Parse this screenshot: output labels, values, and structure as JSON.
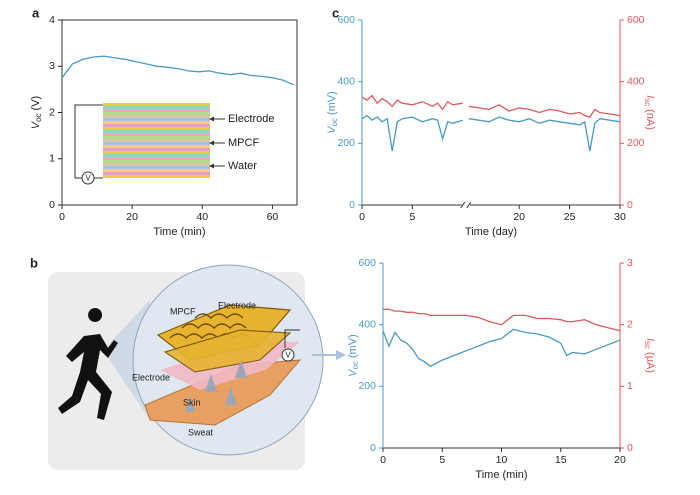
{
  "chart_data": [
    {
      "type": "line",
      "panel": "a",
      "ylabel": {
        "symbol": "V",
        "sub": "oc",
        "unit": "(V)"
      },
      "xlabel": "Time (min)",
      "x": [
        0,
        3,
        6,
        9,
        12,
        15,
        18,
        21,
        24,
        27,
        30,
        33,
        36,
        39,
        42,
        45,
        48,
        51,
        54,
        57,
        60,
        63,
        66
      ],
      "series": [
        {
          "color": "#4a9ac7",
          "values": [
            2.75,
            3.05,
            3.15,
            3.2,
            3.22,
            3.18,
            3.15,
            3.1,
            3.05,
            3.0,
            2.98,
            2.95,
            2.9,
            2.88,
            2.9,
            2.85,
            2.82,
            2.85,
            2.8,
            2.78,
            2.75,
            2.7,
            2.6
          ]
        }
      ],
      "xlim": [
        0,
        67
      ],
      "xticks": [
        0,
        20,
        40,
        60
      ],
      "ylim": [
        0,
        4
      ],
      "yticks": [
        0,
        1,
        2,
        3,
        4
      ],
      "frame": true
    },
    {
      "type": "line",
      "panel": "c",
      "ylabel": {
        "symbol": "V",
        "sub": "oc",
        "unit": "(mV)"
      },
      "y2label": {
        "symbol": "I",
        "sub": "sc",
        "unit": "(nA)"
      },
      "xlabel": "Time (day)",
      "x": [
        0,
        0.5,
        1,
        1.5,
        2,
        2.5,
        3,
        3.5,
        4,
        5,
        6,
        7,
        7.5,
        8,
        8.5,
        9,
        10,
        12.5,
        15,
        16,
        17,
        18,
        19,
        20,
        21,
        22,
        23,
        24,
        25,
        26,
        26.5,
        27,
        27.5,
        28,
        29,
        30
      ],
      "series": [
        {
          "color": "#4a9ac7",
          "values": [
            280,
            290,
            275,
            285,
            270,
            280,
            175,
            270,
            280,
            285,
            270,
            280,
            275,
            215,
            270,
            265,
            275,
            null,
            280,
            275,
            270,
            285,
            275,
            270,
            280,
            265,
            275,
            270,
            265,
            260,
            270,
            175,
            265,
            280,
            275,
            270
          ]
        },
        {
          "color": "#e0595e",
          "axis": "y2",
          "values": [
            350,
            340,
            355,
            330,
            345,
            335,
            320,
            340,
            330,
            325,
            335,
            320,
            330,
            310,
            335,
            325,
            330,
            null,
            320,
            315,
            310,
            325,
            305,
            315,
            310,
            300,
            310,
            305,
            295,
            300,
            290,
            285,
            310,
            300,
            295,
            290
          ]
        }
      ],
      "x_segments": [
        [
          0,
          10
        ],
        [
          15,
          30
        ]
      ],
      "xticks": [
        0,
        5,
        20,
        25,
        30
      ],
      "ylim": [
        0,
        600
      ],
      "yticks": [
        0,
        200,
        400,
        600
      ],
      "y2lim": [
        0,
        600
      ],
      "y2ticks": [
        0,
        200,
        400,
        600
      ]
    },
    {
      "type": "line",
      "ylabel": {
        "symbol": "V",
        "sub": "oc",
        "unit": "(mV)"
      },
      "y2label": {
        "symbol": "I",
        "sub": "sc",
        "unit": "(μA)"
      },
      "xlabel": "Time (min)",
      "x": [
        0,
        0.5,
        1,
        1.5,
        2,
        2.5,
        3,
        3.5,
        4,
        5,
        6,
        7,
        8,
        9,
        10,
        11,
        12,
        13,
        14,
        15,
        15.5,
        16,
        17,
        18,
        19,
        20
      ],
      "series": [
        {
          "color": "#4a9ac7",
          "values": [
            380,
            330,
            375,
            350,
            340,
            320,
            290,
            280,
            265,
            285,
            300,
            315,
            330,
            345,
            355,
            385,
            375,
            370,
            360,
            340,
            300,
            310,
            305,
            320,
            335,
            350
          ]
        },
        {
          "color": "#e0595e",
          "axis": "y2",
          "values": [
            2.25,
            2.25,
            2.22,
            2.22,
            2.2,
            2.2,
            2.18,
            2.18,
            2.15,
            2.15,
            2.15,
            2.15,
            2.12,
            2.05,
            2.0,
            2.15,
            2.15,
            2.1,
            2.1,
            2.08,
            2.05,
            2.05,
            2.08,
            2.0,
            1.95,
            1.9
          ]
        }
      ],
      "xlim": [
        0,
        20
      ],
      "xticks": [
        0,
        5,
        10,
        15,
        20
      ],
      "ylim": [
        0,
        600
      ],
      "yticks": [
        0,
        200,
        400,
        600
      ],
      "y2lim": [
        0,
        3
      ],
      "y2ticks": [
        0,
        1,
        2,
        3
      ]
    }
  ],
  "inset_a": {
    "electrode": "Electrode",
    "mpcf": "MPCF",
    "water": "Water",
    "meter": "V"
  },
  "illustration_b": {
    "panel": "b",
    "mpcf": "MPCF",
    "electrode_top": "Electrode",
    "electrode_bottom": "Electrode",
    "skin": "Skin",
    "sweat": "Sweat",
    "meter": "V"
  }
}
